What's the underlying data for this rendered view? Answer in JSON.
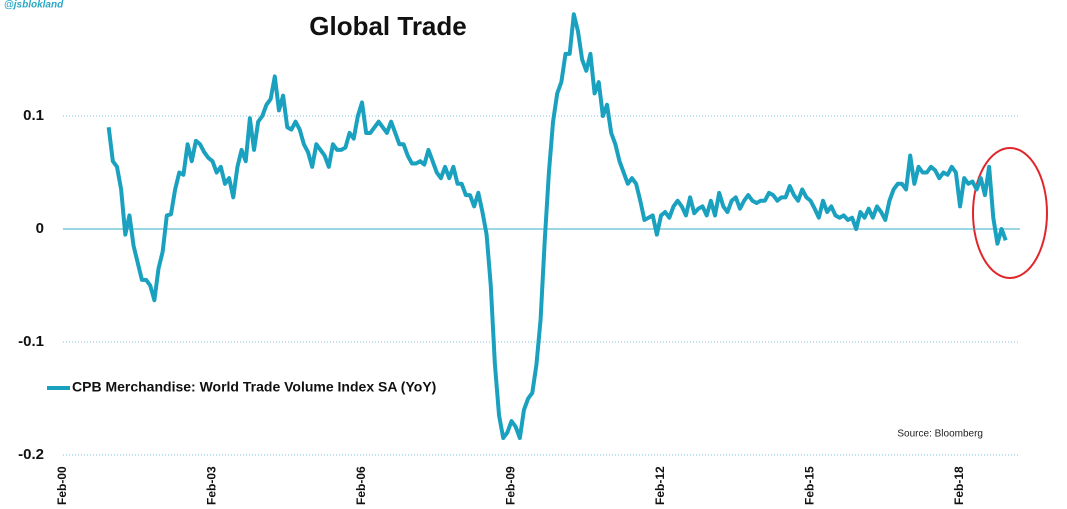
{
  "chart_data": {
    "type": "line",
    "title": "Global Trade",
    "watermark": "@jsblokland",
    "source": "Source: Bloomberg",
    "categories": [
      "Feb-00",
      null,
      null,
      null,
      null,
      null,
      null,
      null,
      null,
      null,
      null,
      null,
      null,
      null,
      null,
      null,
      null,
      null,
      null,
      null,
      null,
      null,
      null,
      null,
      null,
      null,
      null,
      null,
      null,
      null,
      null,
      null,
      null,
      null,
      null,
      null,
      "Feb-03",
      null,
      null,
      null,
      null,
      null,
      null,
      null,
      null,
      null,
      null,
      null,
      null,
      null,
      null,
      null,
      null,
      null,
      null,
      null,
      null,
      null,
      null,
      null,
      null,
      null,
      null,
      null,
      null,
      null,
      null,
      null,
      null,
      null,
      null,
      null,
      "Feb-06",
      null,
      null,
      null,
      null,
      null,
      null,
      null,
      null,
      null,
      null,
      null,
      null,
      null,
      null,
      null,
      null,
      null,
      null,
      null,
      null,
      null,
      null,
      null,
      null,
      null,
      null,
      null,
      null,
      null,
      null,
      null,
      null,
      null,
      null,
      null,
      "Feb-09",
      null,
      null,
      null,
      null,
      null,
      null,
      null,
      null,
      null,
      null,
      null,
      null,
      null,
      null,
      null,
      null,
      null,
      null,
      null,
      null,
      null,
      null,
      null,
      null,
      null,
      null,
      null,
      null,
      null,
      null,
      null,
      null,
      null,
      null,
      null,
      "Feb-12",
      null,
      null,
      null,
      null,
      null,
      null,
      null,
      null,
      null,
      null,
      null,
      null,
      null,
      null,
      null,
      null,
      null,
      null,
      null,
      null,
      null,
      null,
      null,
      null,
      null,
      null,
      null,
      null,
      null,
      null,
      null,
      null,
      null,
      null,
      null,
      "Feb-15",
      null,
      null,
      null,
      null,
      null,
      null,
      null,
      null,
      null,
      null,
      null,
      null,
      null,
      null,
      null,
      null,
      null,
      null,
      null,
      null,
      null,
      null,
      null,
      null,
      null,
      null,
      null,
      null,
      null,
      null,
      null,
      null,
      null,
      null,
      null,
      "Feb-18",
      null,
      null,
      null,
      null,
      null,
      null,
      null,
      null,
      null,
      null,
      null
    ],
    "series": [
      {
        "name": "CPB Merchandise: World Trade Volume Index SA (YoY)",
        "color": "#1ba1c0",
        "values": [
          null,
          null,
          null,
          null,
          null,
          null,
          null,
          null,
          null,
          null,
          null,
          0.09,
          0.06,
          0.055,
          0.035,
          -0.005,
          0.012,
          -0.015,
          -0.03,
          -0.045,
          -0.045,
          -0.05,
          -0.063,
          -0.035,
          -0.02,
          0.012,
          0.013,
          0.035,
          0.05,
          0.048,
          0.075,
          0.06,
          0.078,
          0.075,
          0.068,
          0.063,
          0.06,
          0.05,
          0.055,
          0.04,
          0.045,
          0.028,
          0.055,
          0.07,
          0.06,
          0.098,
          0.07,
          0.095,
          0.1,
          0.11,
          0.115,
          0.135,
          0.105,
          0.118,
          0.09,
          0.088,
          0.095,
          0.088,
          0.075,
          0.068,
          0.055,
          0.075,
          0.07,
          0.065,
          0.055,
          0.075,
          0.07,
          0.07,
          0.072,
          0.085,
          0.08,
          0.1,
          0.112,
          0.085,
          0.085,
          0.09,
          0.095,
          0.09,
          0.085,
          0.095,
          0.085,
          0.075,
          0.075,
          0.065,
          0.058,
          0.058,
          0.06,
          0.057,
          0.07,
          0.06,
          0.05,
          0.045,
          0.055,
          0.045,
          0.055,
          0.04,
          0.04,
          0.03,
          0.03,
          0.02,
          0.032,
          0.015,
          -0.005,
          -0.05,
          -0.12,
          -0.165,
          -0.185,
          -0.18,
          -0.17,
          -0.175,
          -0.185,
          -0.16,
          -0.15,
          -0.145,
          -0.12,
          -0.08,
          -0.01,
          0.05,
          0.095,
          0.12,
          0.13,
          0.155,
          0.155,
          0.19,
          0.175,
          0.15,
          0.14,
          0.155,
          0.12,
          0.13,
          0.1,
          0.11,
          0.085,
          0.075,
          0.06,
          0.05,
          0.04,
          0.045,
          0.04,
          0.025,
          0.008,
          0.01,
          0.012,
          -0.005,
          0.012,
          0.015,
          0.01,
          0.02,
          0.025,
          0.02,
          0.012,
          0.028,
          0.014,
          0.018,
          0.02,
          0.012,
          0.025,
          0.012,
          0.032,
          0.02,
          0.015,
          0.025,
          0.028,
          0.018,
          0.025,
          0.03,
          0.025,
          0.023,
          0.025,
          0.025,
          0.032,
          0.03,
          0.025,
          0.028,
          0.028,
          0.038,
          0.03,
          0.025,
          0.035,
          0.028,
          0.025,
          0.018,
          0.01,
          0.025,
          0.015,
          0.02,
          0.012,
          0.01,
          0.012,
          0.008,
          0.01,
          0.0,
          0.015,
          0.01,
          0.018,
          0.01,
          0.02,
          0.015,
          0.008,
          0.025,
          0.035,
          0.04,
          0.04,
          0.035,
          0.065,
          0.04,
          0.055,
          0.05,
          0.05,
          0.055,
          0.052,
          0.045,
          0.05,
          0.048,
          0.055,
          0.05,
          0.02,
          0.045,
          0.04,
          0.042,
          0.035,
          0.045,
          0.03,
          0.055,
          0.01,
          -0.013,
          0.0,
          -0.01
        ]
      }
    ],
    "ylim": [
      -0.2,
      0.2
    ],
    "yticks": [
      0.1,
      0,
      -0.1,
      -0.2
    ],
    "grid": true
  }
}
